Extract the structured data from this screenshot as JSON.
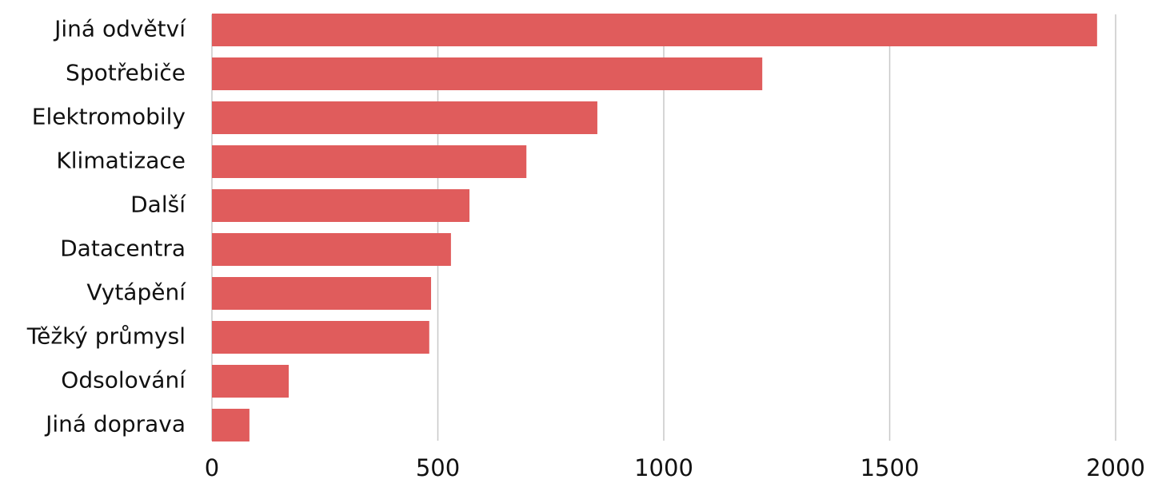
{
  "chart_data": {
    "type": "bar",
    "orientation": "horizontal",
    "categories": [
      "Jiná odvětví",
      "Spotřebiče",
      "Elektromobily",
      "Klimatizace",
      "Další",
      "Datacentra",
      "Vytápění",
      "Těžký průmysl",
      "Odsolování",
      "Jiná doprava"
    ],
    "values": [
      1959,
      1218,
      853,
      696,
      570,
      529,
      485,
      481,
      170,
      83
    ],
    "color": "#e05c5c",
    "xlim": [
      0,
      2000
    ],
    "xticks": [
      0,
      500,
      1000,
      1500,
      2000
    ],
    "grid": true
  }
}
